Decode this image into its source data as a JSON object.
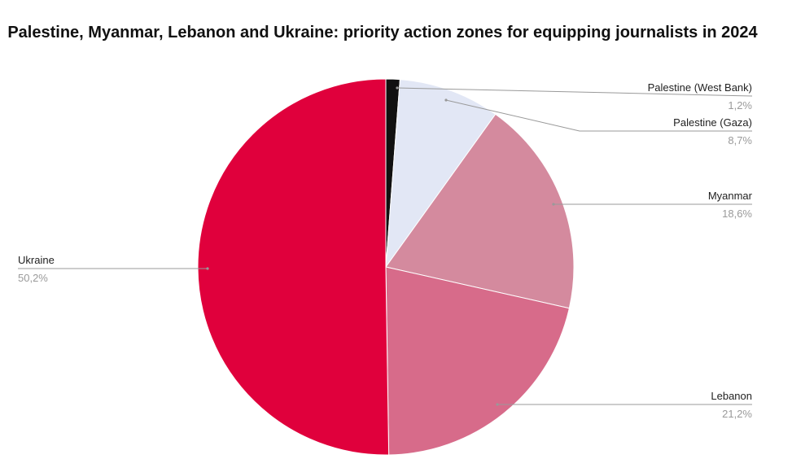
{
  "chart_data": {
    "type": "pie",
    "title": "Palestine, Myanmar, Lebanon and Ukraine: priority action zones for equipping journalists in 2024",
    "slices": [
      {
        "label": "Palestine (West Bank)",
        "value": 1.2,
        "value_label": "1,2%",
        "color": "#111111"
      },
      {
        "label": "Palestine (Gaza)",
        "value": 8.7,
        "value_label": "8,7%",
        "color": "#e2e7f5"
      },
      {
        "label": "Myanmar",
        "value": 18.6,
        "value_label": "18,6%",
        "color": "#d48a9e"
      },
      {
        "label": "Lebanon",
        "value": 21.2,
        "value_label": "21,2%",
        "color": "#d76b8a"
      },
      {
        "label": "Ukraine",
        "value": 50.2,
        "value_label": "50,2%",
        "color": "#e0003c"
      }
    ],
    "start_angle": "12 o'clock",
    "direction": "clockwise",
    "legend": "none"
  }
}
